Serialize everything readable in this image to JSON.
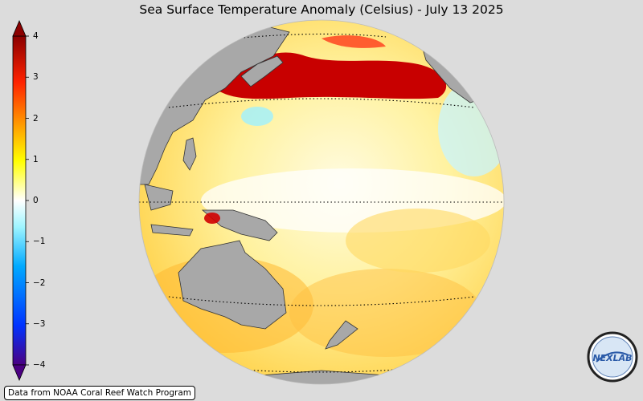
{
  "title": "Sea Surface Temperature Anomaly (Celsius) - July 13 2025",
  "colorbar": {
    "min": -4,
    "max": 4,
    "ticks": [
      {
        "value": 4,
        "label": "4"
      },
      {
        "value": 3,
        "label": "3"
      },
      {
        "value": 2,
        "label": "2"
      },
      {
        "value": 1,
        "label": "1"
      },
      {
        "value": 0,
        "label": "0"
      },
      {
        "value": -1,
        "label": "−1"
      },
      {
        "value": -2,
        "label": "−2"
      },
      {
        "value": -3,
        "label": "−3"
      },
      {
        "value": -4,
        "label": "−4"
      }
    ],
    "colors": [
      "#4b0082",
      "#0033ff",
      "#00aaff",
      "#00e5ff",
      "#ffffff",
      "#ffff00",
      "#ffa500",
      "#ff3300",
      "#8b0000"
    ]
  },
  "map": {
    "ocean_warm_color": "#ffe866",
    "land_color": "#a8a8a8",
    "hot_color": "#c80000"
  },
  "credit": "Data from NOAA Coral Reef Watch Program",
  "logo": {
    "icon": "nexlab-logo",
    "text": "NEXLAB"
  }
}
